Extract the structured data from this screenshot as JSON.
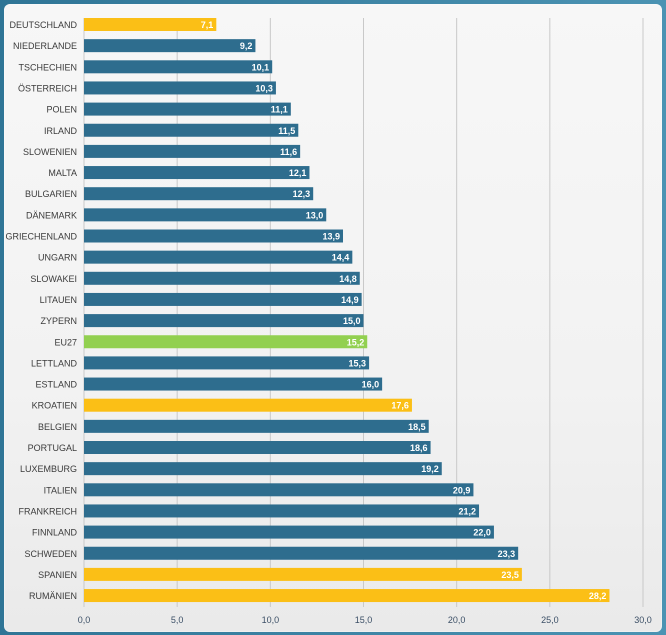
{
  "chart_data": {
    "type": "bar",
    "orientation": "horizontal",
    "categories": [
      "DEUTSCHLAND",
      "NIEDERLANDE",
      "TSCHECHIEN",
      "ÖSTERREICH",
      "POLEN",
      "IRLAND",
      "SLOWENIEN",
      "MALTA",
      "BULGARIEN",
      "DÄNEMARK",
      "GRIECHENLAND",
      "UNGARN",
      "SLOWAKEI",
      "LITAUEN",
      "ZYPERN",
      "EU27",
      "LETTLAND",
      "ESTLAND",
      "KROATIEN",
      "BELGIEN",
      "PORTUGAL",
      "LUXEMBURG",
      "ITALIEN",
      "FRANKREICH",
      "FINNLAND",
      "SCHWEDEN",
      "SPANIEN",
      "RUMÄNIEN"
    ],
    "values": [
      7.1,
      9.2,
      10.1,
      10.3,
      11.1,
      11.5,
      11.6,
      12.1,
      12.3,
      13.0,
      13.9,
      14.4,
      14.8,
      14.9,
      15.0,
      15.2,
      15.3,
      16.0,
      17.6,
      18.5,
      18.6,
      19.2,
      20.9,
      21.2,
      22.0,
      23.3,
      23.5,
      28.2
    ],
    "value_labels": [
      "7,1",
      "9,2",
      "10,1",
      "10,3",
      "11,1",
      "11,5",
      "11,6",
      "12,1",
      "12,3",
      "13,0",
      "13,9",
      "14,4",
      "14,8",
      "14,9",
      "15,0",
      "15,2",
      "15,3",
      "16,0",
      "17,6",
      "18,5",
      "18,6",
      "19,2",
      "20,9",
      "21,2",
      "22,0",
      "23,3",
      "23,5",
      "28,2"
    ],
    "highlight": [
      "yellow",
      "blue",
      "blue",
      "blue",
      "blue",
      "blue",
      "blue",
      "blue",
      "blue",
      "blue",
      "blue",
      "blue",
      "blue",
      "blue",
      "blue",
      "green",
      "blue",
      "blue",
      "yellow",
      "blue",
      "blue",
      "blue",
      "blue",
      "blue",
      "blue",
      "blue",
      "yellow",
      "yellow"
    ],
    "colors": {
      "blue": "#2e6d8e",
      "yellow": "#fbbf16",
      "green": "#92d050"
    },
    "xlim": [
      0,
      30
    ],
    "ticks": [
      0,
      5,
      10,
      15,
      20,
      25,
      30
    ],
    "tick_labels": [
      "0,0",
      "5,0",
      "10,0",
      "15,0",
      "20,0",
      "25,0",
      "30,0"
    ],
    "grid": true
  }
}
